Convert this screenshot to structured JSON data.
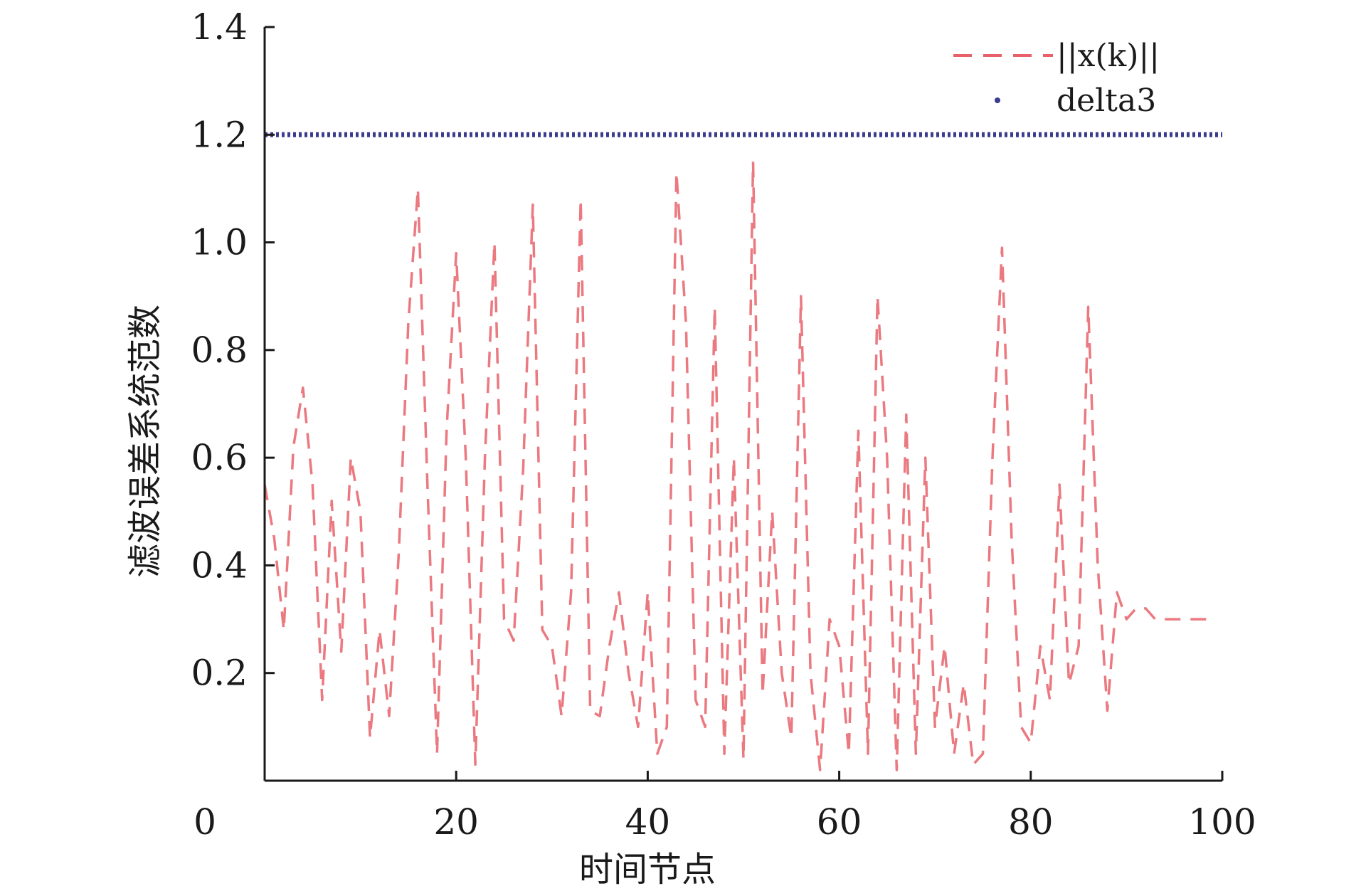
{
  "chart_data": {
    "type": "line",
    "title": "",
    "xlabel": "时间节点",
    "ylabel": "滤波误差系统范数",
    "xlim": [
      0,
      100
    ],
    "ylim": [
      0,
      1.4
    ],
    "x_ticks": [
      "0",
      "20",
      "40",
      "60",
      "80",
      "100"
    ],
    "y_ticks": [
      "0.2",
      "0.4",
      "0.6",
      "0.8",
      "1.0",
      "1.2",
      "1.4"
    ],
    "grid": false,
    "legend_position": "top-right",
    "colors": {
      "norm": "#e8616a",
      "delta3": "#3b3b8f",
      "axis": "#1a1a1a"
    },
    "series": [
      {
        "name": "||x(k)||",
        "style": "dashed",
        "x": [
          0,
          1,
          2,
          3,
          4,
          5,
          6,
          7,
          8,
          9,
          10,
          11,
          12,
          13,
          14,
          15,
          16,
          17,
          18,
          19,
          20,
          21,
          22,
          23,
          24,
          25,
          26,
          27,
          28,
          29,
          30,
          31,
          32,
          33,
          34,
          35,
          36,
          37,
          38,
          39,
          40,
          41,
          42,
          43,
          44,
          45,
          46,
          47,
          48,
          49,
          50,
          51,
          52,
          53,
          54,
          55,
          56,
          57,
          58,
          59,
          60,
          61,
          62,
          63,
          64,
          65,
          66,
          67,
          68,
          69,
          70,
          71,
          72,
          73,
          74,
          75,
          76,
          77,
          78,
          79,
          80,
          81,
          82,
          83,
          84,
          85,
          86,
          87,
          88,
          89,
          90,
          91,
          92,
          93,
          94,
          95,
          96,
          97,
          98,
          99
        ],
        "values": [
          0.55,
          0.45,
          0.28,
          0.62,
          0.73,
          0.55,
          0.15,
          0.52,
          0.24,
          0.6,
          0.5,
          0.08,
          0.28,
          0.12,
          0.42,
          0.85,
          1.1,
          0.55,
          0.05,
          0.65,
          0.98,
          0.6,
          0.03,
          0.6,
          1.0,
          0.3,
          0.26,
          0.58,
          1.07,
          0.28,
          0.25,
          0.12,
          0.35,
          1.08,
          0.13,
          0.12,
          0.25,
          0.35,
          0.2,
          0.1,
          0.35,
          0.05,
          0.1,
          1.13,
          0.85,
          0.15,
          0.1,
          0.88,
          0.05,
          0.6,
          0.04,
          1.15,
          0.16,
          0.5,
          0.2,
          0.08,
          0.9,
          0.2,
          0.02,
          0.3,
          0.25,
          0.05,
          0.65,
          0.05,
          0.9,
          0.6,
          0.02,
          0.68,
          0.05,
          0.6,
          0.1,
          0.25,
          0.05,
          0.18,
          0.03,
          0.05,
          0.6,
          0.99,
          0.45,
          0.1,
          0.07,
          0.25,
          0.15,
          0.55,
          0.18,
          0.25,
          0.88,
          0.4,
          0.13,
          0.35,
          0.3,
          0.32,
          0.32,
          0.3,
          0.3,
          0.3,
          0.3,
          0.3,
          0.3,
          0.3
        ]
      },
      {
        "name": "delta3",
        "style": "dotted",
        "x": [
          0,
          100
        ],
        "values": [
          1.2,
          1.2
        ]
      }
    ]
  }
}
